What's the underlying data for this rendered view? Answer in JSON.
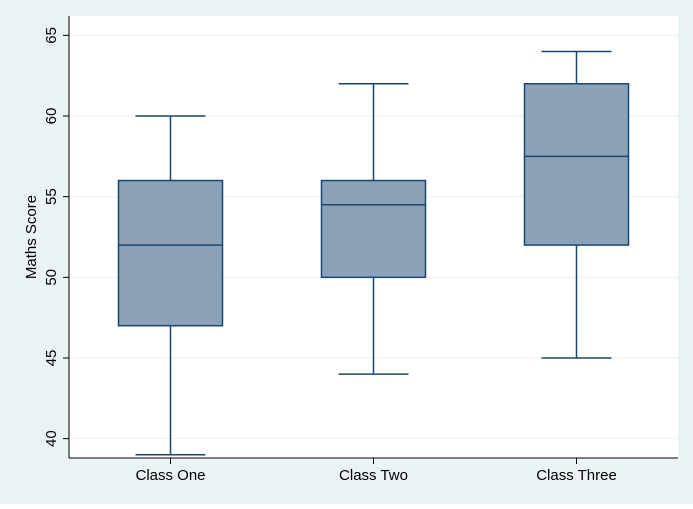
{
  "chart_data": {
    "type": "box",
    "title": "",
    "xlabel": "",
    "ylabel": "Maths Score",
    "ylim": [
      38.8,
      66.2
    ],
    "yticks": [
      40,
      45,
      50,
      55,
      60,
      65
    ],
    "grid": true,
    "categories": [
      "Class One",
      "Class Two",
      "Class Three"
    ],
    "boxes": [
      {
        "category": "Class One",
        "min": 39,
        "q1": 47,
        "median": 52,
        "q3": 56,
        "max": 60
      },
      {
        "category": "Class Two",
        "min": 44,
        "q1": 50,
        "median": 54.5,
        "q3": 56,
        "max": 62
      },
      {
        "category": "Class Three",
        "min": 45,
        "q1": 52,
        "median": 57.5,
        "q3": 62,
        "max": 64
      }
    ]
  },
  "colors": {
    "outer_background": "#eaf2f3",
    "plot_background": "#ffffff",
    "gridline": "#eaf2f3",
    "box_fill": "#8ca2b8",
    "box_stroke": "#1a476f",
    "axis": "#000000"
  }
}
